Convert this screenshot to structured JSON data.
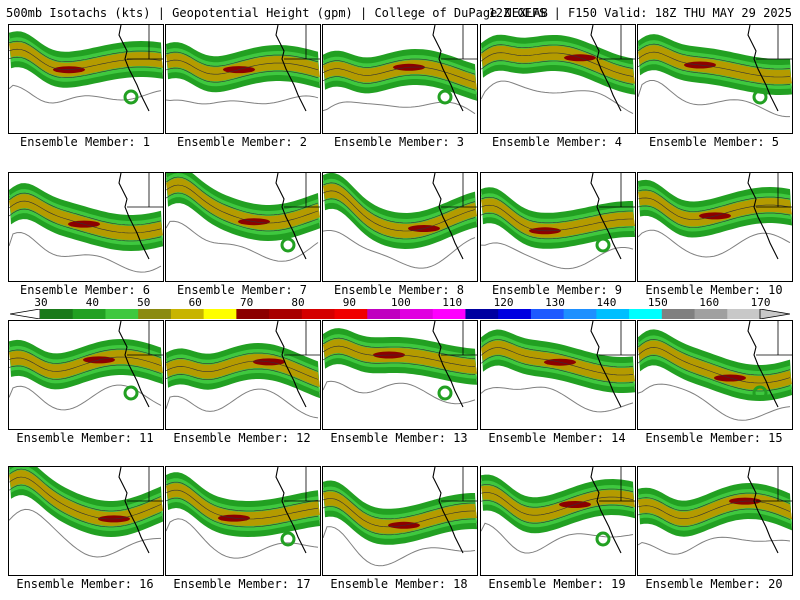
{
  "header": {
    "left": "500mb Isotachs (kts) | Geopotential Height (gpm) | College of DuPage NEXLAB",
    "right": "12Z GEFS | F150 Valid: 18Z THU MAY 29 2025"
  },
  "panels": [
    {
      "label": "Ensemble Member: 1"
    },
    {
      "label": "Ensemble Member: 2"
    },
    {
      "label": "Ensemble Member: 3"
    },
    {
      "label": "Ensemble Member: 4"
    },
    {
      "label": "Ensemble Member: 5"
    },
    {
      "label": "Ensemble Member: 6"
    },
    {
      "label": "Ensemble Member: 7"
    },
    {
      "label": "Ensemble Member: 8"
    },
    {
      "label": "Ensemble Member: 9"
    },
    {
      "label": "Ensemble Member: 10"
    },
    {
      "label": "Ensemble Member: 11"
    },
    {
      "label": "Ensemble Member: 12"
    },
    {
      "label": "Ensemble Member: 13"
    },
    {
      "label": "Ensemble Member: 14"
    },
    {
      "label": "Ensemble Member: 15"
    },
    {
      "label": "Ensemble Member: 16"
    },
    {
      "label": "Ensemble Member: 17"
    },
    {
      "label": "Ensemble Member: 18"
    },
    {
      "label": "Ensemble Member: 19"
    },
    {
      "label": "Ensemble Member: 20"
    }
  ],
  "colorbar": {
    "labels": [
      "30",
      "40",
      "50",
      "60",
      "70",
      "80",
      "90",
      "100",
      "110",
      "120",
      "130",
      "140",
      "150",
      "160",
      "170"
    ],
    "colors": [
      "#1a7a1a",
      "#22a022",
      "#3fc83f",
      "#8a8a10",
      "#c8b400",
      "#ffff00",
      "#8b0000",
      "#a80000",
      "#d40000",
      "#f00000",
      "#c000c0",
      "#e000e0",
      "#ff00ff",
      "#0000a0",
      "#0000e0",
      "#1e5aff",
      "#1e90ff",
      "#00bfff",
      "#00ffff",
      "#808080",
      "#a0a0a0",
      "#c8c8c8"
    ]
  },
  "colors": {
    "jet_green": "#22a022",
    "jet_light": "#3fc83f",
    "jet_olive": "#b49b00",
    "jet_max": "#8b0000",
    "height_contour": "#808080"
  }
}
